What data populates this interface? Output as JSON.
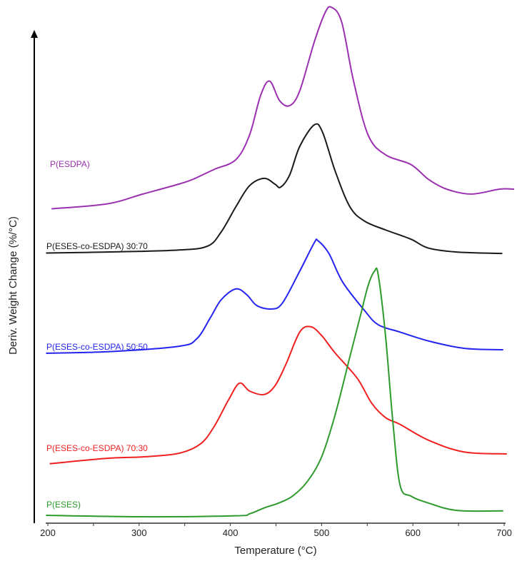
{
  "chart_data": {
    "type": "line",
    "title": "",
    "xlabel": "Temperature (°C)",
    "ylabel": "Deriv. Weight Change (%/°C)",
    "xlim": [
      200,
      700
    ],
    "ylim": [
      0,
      100
    ],
    "x_ticks": [
      "200",
      "300",
      "400",
      "500",
      "600",
      "700"
    ],
    "grid": false,
    "legend": "inline labels at left of each curve",
    "series": [
      {
        "name": "P(ESDPA)",
        "color": "#9b30b0",
        "points": [
          [
            204,
            64
          ],
          [
            265,
            65
          ],
          [
            304,
            67
          ],
          [
            343,
            69
          ],
          [
            359,
            70
          ],
          [
            382,
            72
          ],
          [
            406,
            74
          ],
          [
            421,
            79
          ],
          [
            433,
            87
          ],
          [
            443,
            90
          ],
          [
            454,
            86
          ],
          [
            465,
            85
          ],
          [
            476,
            88
          ],
          [
            492,
            98
          ],
          [
            504,
            104
          ],
          [
            511,
            105
          ],
          [
            522,
            102
          ],
          [
            535,
            90
          ],
          [
            551,
            79
          ],
          [
            570,
            75
          ],
          [
            598,
            73
          ],
          [
            617,
            70
          ],
          [
            637,
            68
          ],
          [
            664,
            67
          ],
          [
            695,
            68
          ],
          [
            711,
            68
          ]
        ]
      },
      {
        "name": "P(ESES-co-ESDPA) 30:70",
        "color": "#1a1a1a",
        "points": [
          [
            198,
            55
          ],
          [
            265,
            55.2
          ],
          [
            343,
            55.6
          ],
          [
            375,
            56.4
          ],
          [
            390,
            59.3
          ],
          [
            406,
            64.4
          ],
          [
            421,
            68.7
          ],
          [
            437,
            70.2
          ],
          [
            449,
            69
          ],
          [
            455,
            68.4
          ],
          [
            465,
            70.9
          ],
          [
            476,
            76.7
          ],
          [
            492,
            81.1
          ],
          [
            501,
            79.6
          ],
          [
            515,
            71.6
          ],
          [
            531,
            64.4
          ],
          [
            547,
            61.5
          ],
          [
            570,
            59.7
          ],
          [
            598,
            57.8
          ],
          [
            617,
            56
          ],
          [
            648,
            55.2
          ],
          [
            698,
            54.9
          ]
        ]
      },
      {
        "name": "P(ESES-co-ESDPA) 50:50",
        "color": "#2424f0",
        "points": [
          [
            198,
            34.6
          ],
          [
            265,
            34.9
          ],
          [
            343,
            36
          ],
          [
            363,
            37.5
          ],
          [
            378,
            41.8
          ],
          [
            390,
            45.5
          ],
          [
            406,
            47.7
          ],
          [
            418,
            46.5
          ],
          [
            429,
            44.3
          ],
          [
            445,
            43.6
          ],
          [
            457,
            44.8
          ],
          [
            476,
            51.3
          ],
          [
            492,
            57.1
          ],
          [
            496,
            57.5
          ],
          [
            508,
            54.9
          ],
          [
            523,
            49.1
          ],
          [
            547,
            43.3
          ],
          [
            562,
            40.4
          ],
          [
            586,
            38.9
          ],
          [
            617,
            37.1
          ],
          [
            656,
            35.6
          ],
          [
            699,
            35.3
          ]
        ]
      },
      {
        "name": "P(ESES-co-ESDPA) 70:30",
        "color": "#f02020",
        "points": [
          [
            202,
            12.1
          ],
          [
            265,
            13.2
          ],
          [
            304,
            13.5
          ],
          [
            343,
            14.2
          ],
          [
            367,
            16.1
          ],
          [
            382,
            19.6
          ],
          [
            398,
            25.1
          ],
          [
            410,
            28.5
          ],
          [
            421,
            26.9
          ],
          [
            437,
            26.2
          ],
          [
            449,
            28
          ],
          [
            461,
            32.4
          ],
          [
            476,
            38.9
          ],
          [
            488,
            40
          ],
          [
            500,
            38.2
          ],
          [
            515,
            34.6
          ],
          [
            539,
            29.5
          ],
          [
            555,
            24.4
          ],
          [
            570,
            21.5
          ],
          [
            586,
            20.1
          ],
          [
            617,
            16.9
          ],
          [
            656,
            14.5
          ],
          [
            703,
            14.1
          ]
        ]
      },
      {
        "name": "P(ESES)",
        "color": "#2e9a2e",
        "points": [
          [
            198,
            1.6
          ],
          [
            304,
            1.3
          ],
          [
            406,
            1.5
          ],
          [
            421,
            1.9
          ],
          [
            437,
            3.1
          ],
          [
            453,
            4.1
          ],
          [
            468,
            5.5
          ],
          [
            484,
            8.4
          ],
          [
            500,
            13.5
          ],
          [
            515,
            22.2
          ],
          [
            531,
            33.9
          ],
          [
            543,
            42.6
          ],
          [
            551,
            48.4
          ],
          [
            558,
            51.3
          ],
          [
            562,
            50.6
          ],
          [
            570,
            38.2
          ],
          [
            578,
            20.8
          ],
          [
            586,
            7.7
          ],
          [
            598,
            5.5
          ],
          [
            617,
            4.1
          ],
          [
            648,
            2.6
          ],
          [
            699,
            2.5
          ]
        ]
      }
    ]
  }
}
